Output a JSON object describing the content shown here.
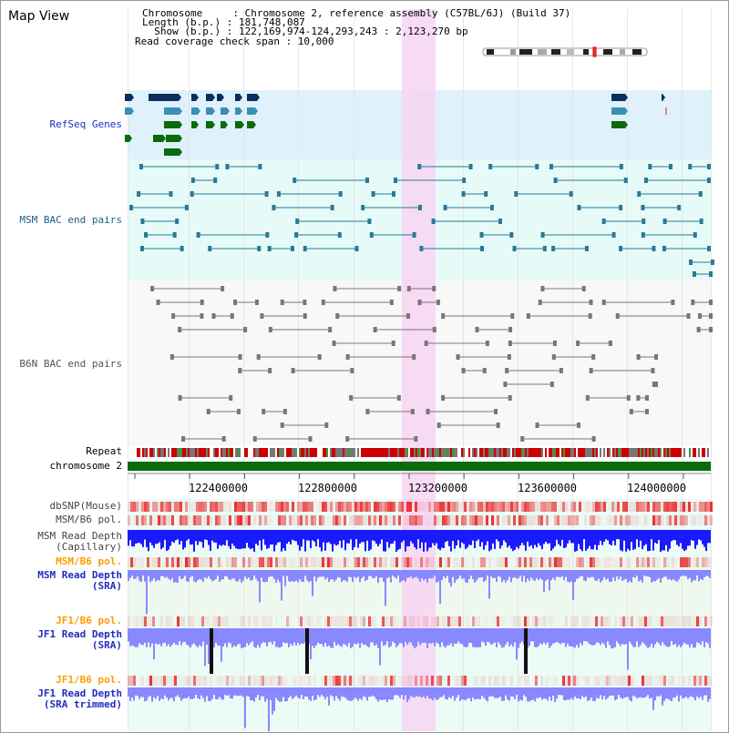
{
  "view_title": "Map View",
  "info": {
    "chromosome_label": "Chromosome     : Chromosome 2, reference assembly (C57BL/6J) (Build 37)",
    "length_label": "Length (b.p.) : 181,748,087",
    "show_label": "  Show (b.p.) : 122,169,974-124,293,243 : 2,123,270 bp",
    "span_label": "Read coverage check span : 10,000"
  },
  "tracks": {
    "refseq": "RefSeq Genes",
    "msm_bac": "MSM BAC end pairs",
    "b6n_bac": "B6N BAC end pairs",
    "repeat": "Repeat",
    "chromosome": "chromosome 2",
    "dbsnp": "dbSNP(Mouse)",
    "msm_pol": "MSM/B6 pol.",
    "msm_depth_cap": "MSM Read Depth\n(Capillary)",
    "msm_pol2": "MSM/B6 pol.",
    "msm_depth_sra": "MSM Read Depth\n(SRA)",
    "jf1_pol": "JF1/B6 pol.",
    "jf1_depth_sra": "JF1 Read Depth\n(SRA)",
    "jf1_pol2": "JF1/B6 pol.",
    "jf1_depth_trim": "JF1 Read Depth\n(SRA trimmed)"
  },
  "ruler": [
    "122400000",
    "122800000",
    "123200000",
    "123600000",
    "124000000"
  ],
  "colors": {
    "refseq_bg": "#dff1fb",
    "msm_bg": "#e6fbf8",
    "b6n_bg": "#f8f8f8",
    "gene_dark": "#0a2f5c",
    "gene_mid": "#3b8fb5",
    "gene_green": "#0b6b0b",
    "msm_line": "#2a7a95",
    "b6n_line": "#777777",
    "highlight": "#f7d5f2",
    "chromosome": "#0a6b0a",
    "depth_blue": "#1a1aff",
    "depth_light": "#8888ff",
    "label_blue": "#1f2dbf",
    "label_orange": "#ff9b00"
  }
}
